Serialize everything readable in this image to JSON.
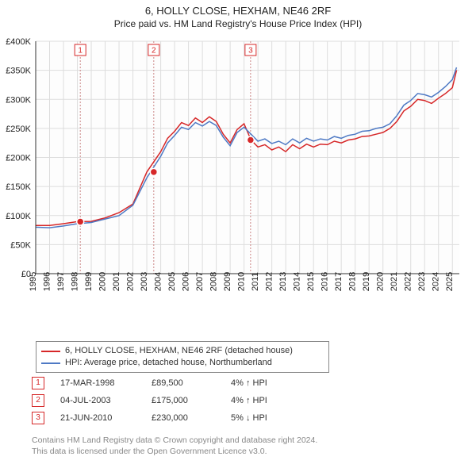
{
  "title_line1": "6, HOLLY CLOSE, HEXHAM, NE46 2RF",
  "title_line2": "Price paid vs. HM Land Registry's House Price Index (HPI)",
  "chart": {
    "type": "line",
    "background_color": "#ffffff",
    "grid_color": "#dddddd",
    "x_axis": {
      "years": [
        1995,
        1996,
        1997,
        1998,
        1999,
        2000,
        2001,
        2002,
        2003,
        2004,
        2005,
        2006,
        2007,
        2008,
        2009,
        2010,
        2011,
        2012,
        2013,
        2014,
        2015,
        2016,
        2017,
        2018,
        2019,
        2020,
        2021,
        2022,
        2023,
        2024,
        2025
      ],
      "xmin": 1995,
      "xmax": 2025.5,
      "tick_fontsize": 11
    },
    "y_axis": {
      "ymin": 0,
      "ymax": 400000,
      "ticks": [
        0,
        50000,
        100000,
        150000,
        200000,
        250000,
        300000,
        350000,
        400000
      ],
      "tick_labels": [
        "£0",
        "£50K",
        "£100K",
        "£150K",
        "£200K",
        "£250K",
        "£300K",
        "£350K",
        "£400K"
      ],
      "tick_fontsize": 11
    },
    "series": [
      {
        "name": "6, HOLLY CLOSE, HEXHAM, NE46 2RF (detached house)",
        "color": "#d62728",
        "line_width": 1.5,
        "data_by_year": {
          "1995": 83000,
          "1996": 83000,
          "1997": 86000,
          "1998": 89500,
          "1999": 90000,
          "2000": 96000,
          "2001": 105000,
          "2002": 120000,
          "2003": 175000,
          "2004": 210000,
          "2004.5": 233000,
          "2005": 245000,
          "2005.5": 260000,
          "2006": 255000,
          "2006.5": 268000,
          "2007": 260000,
          "2007.5": 270000,
          "2008": 262000,
          "2008.5": 240000,
          "2009": 225000,
          "2009.5": 248000,
          "2010": 258000,
          "2010.5": 230000,
          "2011": 218000,
          "2011.5": 222000,
          "2012": 213000,
          "2012.5": 218000,
          "2013": 210000,
          "2013.5": 222000,
          "2014": 215000,
          "2014.5": 223000,
          "2015": 218000,
          "2015.5": 223000,
          "2016": 222000,
          "2016.5": 228000,
          "2017": 225000,
          "2017.5": 230000,
          "2018": 232000,
          "2018.5": 236000,
          "2019": 237000,
          "2019.5": 240000,
          "2020": 243000,
          "2020.5": 250000,
          "2021": 262000,
          "2021.5": 280000,
          "2022": 288000,
          "2022.5": 300000,
          "2023": 298000,
          "2023.5": 293000,
          "2024": 302000,
          "2024.5": 310000,
          "2025": 320000,
          "2025.3": 350000
        }
      },
      {
        "name": "HPI: Average price, detached house, Northumberland",
        "color": "#4e79c4",
        "line_width": 1.5,
        "data_by_year": {
          "1995": 80000,
          "1996": 79000,
          "1997": 82000,
          "1998": 86000,
          "1999": 88000,
          "2000": 94000,
          "2001": 100000,
          "2002": 118000,
          "2003": 165000,
          "2004": 202000,
          "2004.5": 225000,
          "2005": 238000,
          "2005.5": 252000,
          "2006": 248000,
          "2006.5": 260000,
          "2007": 254000,
          "2007.5": 262000,
          "2008": 255000,
          "2008.5": 235000,
          "2009": 220000,
          "2009.5": 243000,
          "2010": 252000,
          "2010.5": 240000,
          "2011": 228000,
          "2011.5": 232000,
          "2012": 224000,
          "2012.5": 228000,
          "2013": 222000,
          "2013.5": 232000,
          "2014": 225000,
          "2014.5": 233000,
          "2015": 228000,
          "2015.5": 232000,
          "2016": 230000,
          "2016.5": 236000,
          "2017": 233000,
          "2017.5": 238000,
          "2018": 240000,
          "2018.5": 245000,
          "2019": 246000,
          "2019.5": 250000,
          "2020": 252000,
          "2020.5": 258000,
          "2021": 272000,
          "2021.5": 290000,
          "2022": 298000,
          "2022.5": 310000,
          "2023": 308000,
          "2023.5": 304000,
          "2024": 312000,
          "2024.5": 322000,
          "2025": 334000,
          "2025.3": 355000
        }
      }
    ],
    "markers": [
      {
        "n": "1",
        "year": 1998.21,
        "value": 89500
      },
      {
        "n": "2",
        "year": 2003.5,
        "value": 175000
      },
      {
        "n": "3",
        "year": 2010.47,
        "value": 230000
      }
    ]
  },
  "legend": {
    "border_color": "#888888",
    "items": [
      {
        "color": "#d62728",
        "label": "6, HOLLY CLOSE, HEXHAM, NE46 2RF (detached house)"
      },
      {
        "color": "#4e79c4",
        "label": "HPI: Average price, detached house, Northumberland"
      }
    ]
  },
  "sales_rows": [
    {
      "n": "1",
      "date": "17-MAR-1998",
      "price": "£89,500",
      "hpi": "4% ↑ HPI"
    },
    {
      "n": "2",
      "date": "04-JUL-2003",
      "price": "£175,000",
      "hpi": "4% ↑ HPI"
    },
    {
      "n": "3",
      "date": "21-JUN-2010",
      "price": "£230,000",
      "hpi": "5% ↓ HPI"
    }
  ],
  "attribution": {
    "line1": "Contains HM Land Registry data © Crown copyright and database right 2024.",
    "line2": "This data is licensed under the Open Government Licence v3.0."
  }
}
